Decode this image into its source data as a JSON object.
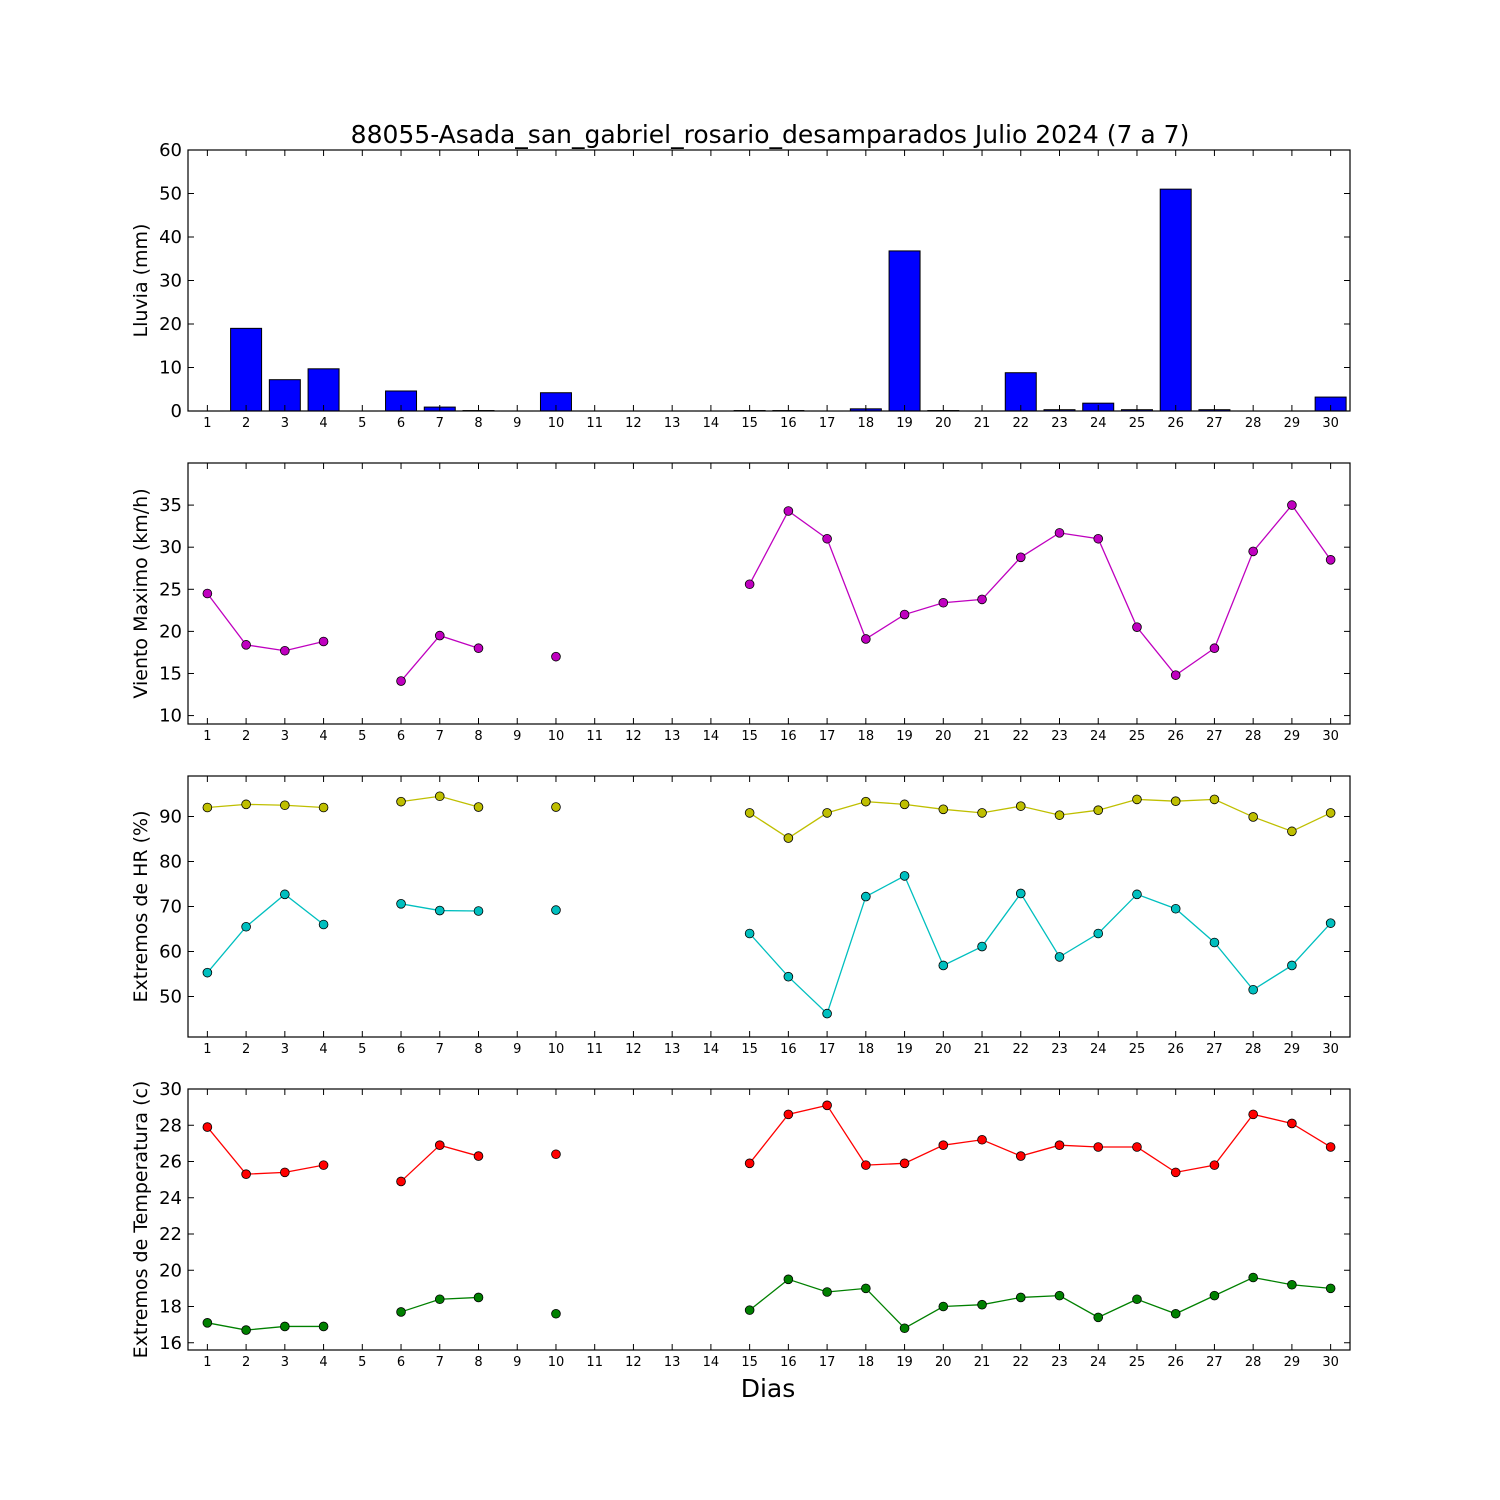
{
  "figure": {
    "title": "88055-Asada_san_gabriel_rosario_desamparados Julio 2024  (7 a 7)",
    "xlabel": "Dias"
  },
  "chart_data": [
    {
      "type": "bar",
      "ylabel": "Lluvia (mm)",
      "x": [
        1,
        2,
        3,
        4,
        5,
        6,
        7,
        8,
        9,
        10,
        11,
        12,
        13,
        14,
        15,
        16,
        17,
        18,
        19,
        20,
        21,
        22,
        23,
        24,
        25,
        26,
        27,
        28,
        29,
        30
      ],
      "xlim": [
        0.5,
        30.5
      ],
      "ylim": [
        0,
        60
      ],
      "yticks": [
        0,
        10,
        20,
        30,
        40,
        50,
        60
      ],
      "series": [
        {
          "color": "#0000ff",
          "values": [
            0,
            19,
            7.2,
            9.7,
            0,
            4.6,
            0.9,
            0.1,
            0,
            4.2,
            0,
            0,
            0,
            0,
            0.1,
            0.1,
            0,
            0.5,
            36.8,
            0.1,
            0,
            8.8,
            0.3,
            1.8,
            0.3,
            51,
            0.3,
            0,
            0,
            3.2
          ]
        }
      ]
    },
    {
      "type": "line",
      "ylabel": "Viento Maximo (km/h)",
      "x": [
        1,
        2,
        3,
        4,
        5,
        6,
        7,
        8,
        9,
        10,
        11,
        12,
        13,
        14,
        15,
        16,
        17,
        18,
        19,
        20,
        21,
        22,
        23,
        24,
        25,
        26,
        27,
        28,
        29,
        30
      ],
      "xlim": [
        0.5,
        30.5
      ],
      "ylim": [
        9,
        40
      ],
      "yticks": [
        10,
        15,
        20,
        25,
        30,
        35
      ],
      "series": [
        {
          "color": "#bf00bf",
          "values": [
            24.5,
            18.4,
            17.7,
            18.8,
            null,
            14.1,
            19.5,
            18.0,
            null,
            17.0,
            null,
            null,
            null,
            null,
            25.6,
            34.3,
            31.0,
            19.1,
            22.0,
            23.4,
            23.8,
            28.8,
            31.7,
            31.0,
            20.5,
            14.8,
            18.0,
            29.5,
            35.0,
            28.5
          ]
        }
      ]
    },
    {
      "type": "line",
      "ylabel": "Extremos de HR (%)",
      "x": [
        1,
        2,
        3,
        4,
        5,
        6,
        7,
        8,
        9,
        10,
        11,
        12,
        13,
        14,
        15,
        16,
        17,
        18,
        19,
        20,
        21,
        22,
        23,
        24,
        25,
        26,
        27,
        28,
        29,
        30
      ],
      "xlim": [
        0.5,
        30.5
      ],
      "ylim": [
        41,
        99
      ],
      "yticks": [
        50,
        60,
        70,
        80,
        90
      ],
      "series": [
        {
          "color": "#bfbf00",
          "values": [
            92,
            92.7,
            92.5,
            92,
            null,
            93.3,
            94.5,
            92.1,
            null,
            92.1,
            null,
            null,
            null,
            null,
            90.8,
            85.2,
            90.8,
            93.3,
            92.7,
            91.6,
            90.8,
            92.3,
            90.3,
            91.4,
            93.8,
            93.4,
            93.8,
            89.9,
            86.7,
            90.8
          ]
        },
        {
          "color": "#00bfbf",
          "values": [
            55.3,
            65.5,
            72.7,
            66.0,
            null,
            70.6,
            69.1,
            69.0,
            null,
            69.2,
            null,
            null,
            null,
            null,
            64.0,
            54.4,
            46.2,
            72.2,
            76.8,
            56.9,
            61.1,
            72.9,
            58.8,
            64.0,
            72.7,
            69.5,
            62.0,
            51.5,
            56.9,
            66.3
          ]
        }
      ]
    },
    {
      "type": "line",
      "ylabel": "Extremos de Temperatura (c)",
      "x": [
        1,
        2,
        3,
        4,
        5,
        6,
        7,
        8,
        9,
        10,
        11,
        12,
        13,
        14,
        15,
        16,
        17,
        18,
        19,
        20,
        21,
        22,
        23,
        24,
        25,
        26,
        27,
        28,
        29,
        30
      ],
      "xlim": [
        0.5,
        30.5
      ],
      "ylim": [
        15.6,
        30
      ],
      "yticks": [
        16,
        18,
        20,
        22,
        24,
        26,
        28,
        30
      ],
      "series": [
        {
          "color": "#ff0000",
          "values": [
            27.9,
            25.3,
            25.4,
            25.8,
            null,
            24.9,
            26.9,
            26.3,
            null,
            26.4,
            null,
            null,
            null,
            null,
            25.9,
            28.6,
            29.1,
            25.8,
            25.9,
            26.9,
            27.2,
            26.3,
            26.9,
            26.8,
            26.8,
            25.4,
            25.8,
            28.6,
            28.1,
            26.8
          ]
        },
        {
          "color": "#008000",
          "values": [
            17.1,
            16.7,
            16.9,
            16.9,
            null,
            17.7,
            18.4,
            18.5,
            null,
            17.6,
            null,
            null,
            null,
            null,
            17.8,
            19.5,
            18.8,
            19.0,
            16.8,
            18.0,
            18.1,
            18.5,
            18.6,
            17.4,
            18.4,
            17.6,
            18.6,
            19.6,
            19.2,
            19.0
          ]
        }
      ]
    }
  ]
}
